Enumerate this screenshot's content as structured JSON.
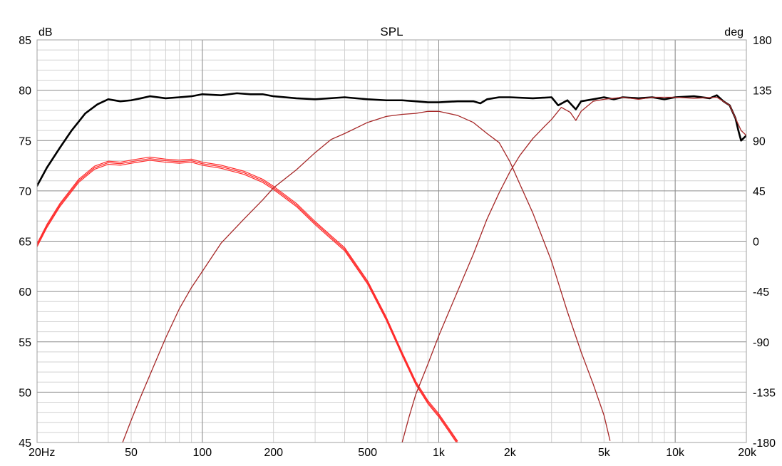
{
  "chart_data": {
    "type": "line",
    "title": "SPL",
    "ylabel": "dB",
    "y2label": "deg",
    "xscale": "log",
    "xlim": [
      20,
      20000
    ],
    "ylim": [
      45,
      85
    ],
    "y2lim": [
      -180,
      180
    ],
    "grid": true,
    "xticks": [
      {
        "value": 20,
        "label": "20Hz"
      },
      {
        "value": 50,
        "label": "50"
      },
      {
        "value": 100,
        "label": "100"
      },
      {
        "value": 200,
        "label": "200"
      },
      {
        "value": 500,
        "label": "500"
      },
      {
        "value": 1000,
        "label": "1k"
      },
      {
        "value": 2000,
        "label": "2k"
      },
      {
        "value": 5000,
        "label": "5k"
      },
      {
        "value": 10000,
        "label": "10k"
      },
      {
        "value": 20000,
        "label": "20k"
      }
    ],
    "yticks": [
      {
        "value": 85,
        "label": "85"
      },
      {
        "value": 80,
        "label": "80"
      },
      {
        "value": 75,
        "label": "75"
      },
      {
        "value": 70,
        "label": "70"
      },
      {
        "value": 65,
        "label": "65"
      },
      {
        "value": 60,
        "label": "60"
      },
      {
        "value": 55,
        "label": "55"
      },
      {
        "value": 50,
        "label": "50"
      },
      {
        "value": 45,
        "label": "45"
      }
    ],
    "y2ticks": [
      {
        "value": 180,
        "label": "180"
      },
      {
        "value": 135,
        "label": "135"
      },
      {
        "value": 90,
        "label": "90"
      },
      {
        "value": 45,
        "label": "45"
      },
      {
        "value": 0,
        "label": "0"
      },
      {
        "value": -45,
        "label": "-45"
      },
      {
        "value": -90,
        "label": "-90"
      },
      {
        "value": -135,
        "label": "-135"
      },
      {
        "value": -180,
        "label": "-180"
      }
    ],
    "series": [
      {
        "color": "#000000",
        "style": "thick",
        "x": [
          20,
          22,
          25,
          28,
          32,
          36,
          40,
          45,
          50,
          55,
          60,
          70,
          80,
          90,
          100,
          120,
          140,
          160,
          180,
          200,
          250,
          300,
          400,
          500,
          600,
          700,
          800,
          900,
          1000,
          1200,
          1400,
          1500,
          1600,
          1800,
          2000,
          2500,
          3000,
          3200,
          3500,
          3800,
          4000,
          4500,
          5000,
          5500,
          6000,
          7000,
          8000,
          9000,
          10000,
          12000,
          14000,
          15000,
          16000,
          17000,
          18000,
          18500,
          19000,
          20000
        ],
        "y": [
          70.5,
          72.3,
          74.3,
          76.0,
          77.7,
          78.6,
          79.1,
          78.9,
          79.0,
          79.2,
          79.4,
          79.2,
          79.3,
          79.4,
          79.6,
          79.5,
          79.7,
          79.6,
          79.6,
          79.4,
          79.2,
          79.1,
          79.3,
          79.1,
          79.0,
          79.0,
          78.9,
          78.8,
          78.8,
          78.9,
          78.9,
          78.7,
          79.1,
          79.3,
          79.3,
          79.2,
          79.3,
          78.5,
          79.0,
          78.1,
          78.9,
          79.1,
          79.3,
          79.1,
          79.3,
          79.2,
          79.3,
          79.1,
          79.3,
          79.4,
          79.2,
          79.5,
          78.9,
          78.5,
          77.2,
          76.0,
          75.0,
          75.5
        ]
      },
      {
        "color": "#ff2a2a",
        "style": "triple",
        "x": [
          20,
          22,
          25,
          30,
          35,
          40,
          45,
          50,
          60,
          70,
          80,
          90,
          100,
          120,
          150,
          180,
          200,
          250,
          300,
          350,
          400,
          500,
          600,
          700,
          800,
          900,
          1000,
          1100,
          1200
        ],
        "y": [
          64.6,
          66.5,
          68.6,
          71.0,
          72.3,
          72.8,
          72.7,
          72.9,
          73.2,
          73.0,
          72.9,
          73.0,
          72.7,
          72.4,
          71.8,
          71.0,
          70.3,
          68.6,
          66.8,
          65.4,
          64.2,
          60.9,
          57.3,
          53.8,
          50.9,
          49.0,
          47.7,
          46.3,
          45.0
        ]
      },
      {
        "color": "#a62828",
        "style": "thin",
        "x": [
          46,
          50,
          55,
          60,
          70,
          80,
          90,
          100,
          120,
          150,
          180,
          200,
          250,
          300,
          350,
          400,
          500,
          600,
          700,
          800,
          900,
          1000,
          1200,
          1400,
          1600,
          1800,
          2000,
          2200,
          2500,
          3000,
          3500,
          4000,
          4500,
          5000,
          5300
        ],
        "y": [
          45.0,
          47.2,
          49.6,
          51.7,
          55.4,
          58.3,
          60.4,
          62.0,
          64.8,
          67.2,
          69.1,
          70.3,
          72.1,
          73.8,
          75.1,
          75.7,
          76.8,
          77.4,
          77.6,
          77.7,
          77.9,
          77.9,
          77.5,
          76.8,
          75.7,
          74.8,
          72.9,
          70.7,
          67.8,
          63.0,
          58.0,
          54.0,
          50.8,
          47.7,
          45.2
        ]
      },
      {
        "color": "#a62828",
        "style": "thin",
        "x": [
          700,
          750,
          800,
          900,
          1000,
          1100,
          1200,
          1400,
          1600,
          1800,
          2000,
          2200,
          2500,
          2800,
          3000,
          3300,
          3600,
          3800,
          4000,
          4500,
          5000,
          6000,
          7000,
          8000,
          10000,
          12000,
          15000,
          17000,
          19000,
          20000
        ],
        "y": [
          45.0,
          47.6,
          49.8,
          52.8,
          55.6,
          57.9,
          60.0,
          63.7,
          67.2,
          69.8,
          71.9,
          73.5,
          75.2,
          76.4,
          77.1,
          78.3,
          77.8,
          77.0,
          77.9,
          78.9,
          79.1,
          79.3,
          79.1,
          79.3,
          79.3,
          79.2,
          79.3,
          78.5,
          76.0,
          75.5
        ]
      }
    ]
  }
}
